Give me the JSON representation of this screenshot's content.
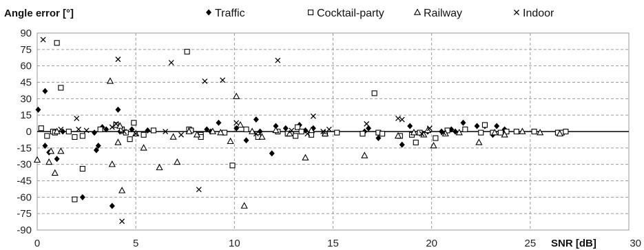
{
  "chart_data": {
    "type": "scatter",
    "ylabel": "Angle error [°]",
    "xlabel": "SNR [dB]",
    "xlim": [
      0,
      30
    ],
    "ylim": [
      -90,
      90
    ],
    "xticks": [
      "0",
      "5",
      "10",
      "15",
      "20",
      "25",
      "30"
    ],
    "yticks": [
      "90",
      "75",
      "60",
      "45",
      "30",
      "15",
      "0",
      "-15",
      "-30",
      "-45",
      "-60",
      "-75",
      "-90"
    ],
    "grid": true,
    "legend_position": "top",
    "series": [
      {
        "name": "Traffic",
        "marker": "diamond",
        "points": [
          [
            0.05,
            20
          ],
          [
            0.4,
            37
          ],
          [
            0.4,
            -13
          ],
          [
            0.6,
            -19
          ],
          [
            1.0,
            -25
          ],
          [
            1.3,
            0
          ],
          [
            2.3,
            -60
          ],
          [
            2.9,
            -1
          ],
          [
            3.0,
            -17
          ],
          [
            3.1,
            -13
          ],
          [
            3.3,
            4
          ],
          [
            3.5,
            2
          ],
          [
            3.8,
            -68
          ],
          [
            4.1,
            20
          ],
          [
            4.2,
            0
          ],
          [
            4.8,
            2
          ],
          [
            5.6,
            1
          ],
          [
            8.6,
            2
          ],
          [
            8.8,
            0
          ],
          [
            9.2,
            8
          ],
          [
            10.1,
            3
          ],
          [
            10.6,
            -8
          ],
          [
            11.1,
            11
          ],
          [
            11.3,
            0
          ],
          [
            11.9,
            -20
          ],
          [
            12.1,
            5
          ],
          [
            12.6,
            3
          ],
          [
            13.3,
            6
          ],
          [
            13.6,
            1
          ],
          [
            14.0,
            3
          ],
          [
            16.6,
            0
          ],
          [
            16.8,
            3
          ],
          [
            17.3,
            -6
          ],
          [
            18.5,
            -12
          ],
          [
            18.9,
            5
          ],
          [
            19.8,
            0
          ],
          [
            20.5,
            0
          ],
          [
            21.0,
            2
          ],
          [
            21.2,
            0
          ],
          [
            21.6,
            8
          ],
          [
            22.3,
            5
          ],
          [
            22.7,
            5
          ],
          [
            23.1,
            -3
          ],
          [
            23.3,
            5
          ],
          [
            23.7,
            2
          ],
          [
            26.6,
            -1
          ]
        ]
      },
      {
        "name": "Cocktail-party",
        "marker": "square",
        "points": [
          [
            0.2,
            3
          ],
          [
            0.5,
            -4
          ],
          [
            0.8,
            0
          ],
          [
            0.9,
            -1
          ],
          [
            1.0,
            81
          ],
          [
            1.2,
            40
          ],
          [
            1.6,
            0
          ],
          [
            1.9,
            -62
          ],
          [
            1.9,
            -5
          ],
          [
            2.3,
            -4
          ],
          [
            2.3,
            -34
          ],
          [
            3.2,
            2
          ],
          [
            4.0,
            6
          ],
          [
            4.3,
            2
          ],
          [
            4.5,
            -1
          ],
          [
            4.7,
            -7
          ],
          [
            4.9,
            8
          ],
          [
            5.4,
            -3
          ],
          [
            5.9,
            1
          ],
          [
            7.6,
            73
          ],
          [
            7.7,
            2
          ],
          [
            7.8,
            1
          ],
          [
            8.3,
            -3
          ],
          [
            8.3,
            -5
          ],
          [
            9.5,
            -1
          ],
          [
            9.9,
            -31
          ],
          [
            10.6,
            2
          ],
          [
            11.2,
            -5
          ],
          [
            12.2,
            0
          ],
          [
            12.7,
            -2
          ],
          [
            13.1,
            -4
          ],
          [
            13.2,
            4
          ],
          [
            13.4,
            0
          ],
          [
            13.9,
            -3
          ],
          [
            14.6,
            -2
          ],
          [
            15.2,
            -1
          ],
          [
            16.5,
            -2
          ],
          [
            17.1,
            35
          ],
          [
            17.3,
            -1
          ],
          [
            17.5,
            -2
          ],
          [
            18.4,
            -4
          ],
          [
            19.0,
            -3
          ],
          [
            19.2,
            -10
          ],
          [
            19.4,
            -1
          ],
          [
            20.2,
            -6
          ],
          [
            20.8,
            1
          ],
          [
            21.7,
            2
          ],
          [
            22.5,
            -1
          ],
          [
            22.7,
            6
          ],
          [
            23.1,
            -1
          ],
          [
            23.5,
            -1
          ],
          [
            23.8,
            0
          ],
          [
            24.3,
            0
          ],
          [
            25.2,
            0
          ],
          [
            26.4,
            -1
          ],
          [
            26.6,
            -1
          ],
          [
            26.8,
            0
          ]
        ]
      },
      {
        "name": "Railway",
        "marker": "triangle",
        "points": [
          [
            0.0,
            -26
          ],
          [
            0.6,
            -28
          ],
          [
            0.7,
            -18
          ],
          [
            0.9,
            -38
          ],
          [
            1.0,
            0
          ],
          [
            1.2,
            -18
          ],
          [
            3.7,
            46
          ],
          [
            3.8,
            -30
          ],
          [
            4.1,
            -10
          ],
          [
            4.2,
            5
          ],
          [
            4.3,
            -54
          ],
          [
            5.0,
            -2
          ],
          [
            5.4,
            -15
          ],
          [
            6.2,
            -33
          ],
          [
            6.9,
            -5
          ],
          [
            7.1,
            -28
          ],
          [
            7.7,
            0
          ],
          [
            8.1,
            -3
          ],
          [
            8.9,
            0
          ],
          [
            9.3,
            -1
          ],
          [
            9.8,
            -9
          ],
          [
            10.1,
            32
          ],
          [
            10.3,
            6
          ],
          [
            10.5,
            -68
          ],
          [
            10.9,
            0
          ],
          [
            11.4,
            -5
          ],
          [
            12.1,
            1
          ],
          [
            12.8,
            -2
          ],
          [
            13.6,
            -24
          ],
          [
            13.9,
            1
          ],
          [
            14.6,
            -2
          ],
          [
            16.6,
            -22
          ],
          [
            18.3,
            -4
          ],
          [
            19.1,
            -1
          ],
          [
            19.6,
            -3
          ],
          [
            19.8,
            1
          ],
          [
            20.1,
            -13
          ],
          [
            20.7,
            -2
          ],
          [
            21.4,
            -1
          ],
          [
            22.4,
            -10
          ],
          [
            23.2,
            -1
          ],
          [
            23.7,
            -3
          ],
          [
            24.6,
            0
          ],
          [
            25.5,
            -1
          ],
          [
            26.5,
            -2
          ]
        ]
      },
      {
        "name": "Indoor",
        "marker": "cross",
        "points": [
          [
            0.3,
            84
          ],
          [
            1.2,
            2
          ],
          [
            2.0,
            12
          ],
          [
            2.1,
            2
          ],
          [
            2.5,
            1
          ],
          [
            3.8,
            4
          ],
          [
            4.0,
            7
          ],
          [
            4.1,
            66
          ],
          [
            4.3,
            -82
          ],
          [
            4.4,
            0
          ],
          [
            5.0,
            -2
          ],
          [
            6.5,
            0
          ],
          [
            6.8,
            63
          ],
          [
            7.3,
            -3
          ],
          [
            8.2,
            -53
          ],
          [
            8.5,
            46
          ],
          [
            9.4,
            47
          ],
          [
            10.1,
            8
          ],
          [
            11.1,
            -2
          ],
          [
            12.2,
            65
          ],
          [
            12.9,
            1
          ],
          [
            13.7,
            -2
          ],
          [
            14.0,
            14
          ],
          [
            14.5,
            0
          ],
          [
            14.8,
            2
          ],
          [
            16.7,
            7
          ],
          [
            18.3,
            12
          ],
          [
            18.5,
            11
          ],
          [
            19.5,
            -2
          ],
          [
            19.9,
            3
          ],
          [
            20.6,
            -1
          ]
        ]
      }
    ]
  }
}
